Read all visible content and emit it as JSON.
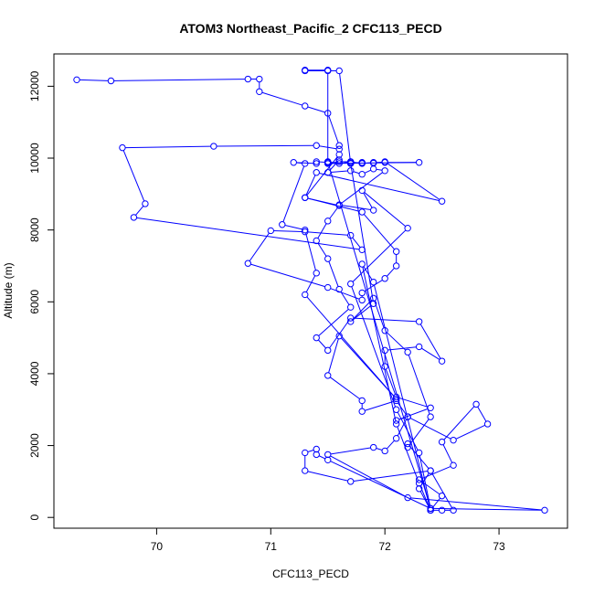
{
  "chart_data": {
    "type": "line",
    "title": "ATOM3 Northeast_Pacific_2 CFC113_PECD",
    "xlabel": "CFC113_PECD",
    "ylabel": "Altitude (m)",
    "xlim": [
      69.1,
      73.6
    ],
    "ylim": [
      -300,
      12900
    ],
    "x_ticks": [
      70,
      71,
      72,
      73
    ],
    "y_ticks": [
      0,
      2000,
      4000,
      6000,
      8000,
      10000,
      12000
    ],
    "grid": false,
    "series_color": "#0000ff",
    "series": [
      {
        "points": [
          [
            69.3,
            12180
          ],
          [
            69.6,
            12150
          ],
          [
            70.8,
            12200
          ],
          [
            70.9,
            12200
          ],
          [
            70.9,
            11850
          ],
          [
            71.3,
            11450
          ],
          [
            71.5,
            11250
          ],
          [
            71.6,
            10350
          ],
          [
            71.6,
            10250
          ],
          [
            71.4,
            10350
          ],
          [
            70.5,
            10330
          ],
          [
            69.7,
            10290
          ],
          [
            69.9,
            8730
          ],
          [
            69.8,
            8350
          ],
          [
            71.8,
            7450
          ],
          [
            71.7,
            7850
          ],
          [
            71.3,
            7950
          ],
          [
            71.0,
            7980
          ],
          [
            70.8,
            7070
          ],
          [
            71.5,
            6400
          ],
          [
            71.8,
            6050
          ],
          [
            71.8,
            6250
          ],
          [
            72.0,
            6650
          ],
          [
            72.1,
            7000
          ],
          [
            72.1,
            7400
          ],
          [
            71.8,
            8500
          ],
          [
            71.3,
            8900
          ],
          [
            71.6,
            8680
          ],
          [
            71.5,
            8250
          ],
          [
            71.4,
            7700
          ],
          [
            71.5,
            7200
          ],
          [
            71.6,
            6350
          ],
          [
            71.7,
            5850
          ],
          [
            71.4,
            5000
          ],
          [
            71.5,
            4650
          ],
          [
            71.7,
            5550
          ],
          [
            72.3,
            5450
          ],
          [
            72.5,
            4350
          ],
          [
            72.3,
            4750
          ],
          [
            72.0,
            4650
          ],
          [
            72.0,
            4200
          ],
          [
            72.1,
            3350
          ],
          [
            72.4,
            3050
          ],
          [
            72.1,
            2700
          ],
          [
            72.2,
            2800
          ],
          [
            72.6,
            2150
          ],
          [
            72.9,
            2600
          ],
          [
            72.8,
            3150
          ],
          [
            72.5,
            2100
          ],
          [
            72.6,
            1450
          ],
          [
            72.3,
            1050
          ],
          [
            72.5,
            600
          ],
          [
            72.4,
            200
          ],
          [
            72.5,
            200
          ],
          [
            72.6,
            200
          ],
          [
            72.4,
            1300
          ],
          [
            71.7,
            1000
          ],
          [
            71.3,
            1300
          ],
          [
            71.3,
            1800
          ],
          [
            71.4,
            1900
          ],
          [
            71.4,
            1750
          ],
          [
            71.5,
            1600
          ],
          [
            72.4,
            250
          ],
          [
            73.4,
            200
          ],
          [
            72.2,
            550
          ],
          [
            71.5,
            1750
          ],
          [
            71.9,
            1950
          ],
          [
            72.0,
            1850
          ],
          [
            72.1,
            2200
          ],
          [
            72.2,
            2800
          ],
          [
            72.1,
            3250
          ],
          [
            71.8,
            2950
          ],
          [
            71.8,
            3250
          ],
          [
            71.5,
            3950
          ],
          [
            71.6,
            5050
          ],
          [
            72.1,
            3300
          ],
          [
            71.3,
            6200
          ],
          [
            71.4,
            6800
          ],
          [
            71.3,
            8000
          ],
          [
            71.1,
            8150
          ],
          [
            71.3,
            9850
          ],
          [
            71.2,
            9880
          ],
          [
            71.4,
            9850
          ],
          [
            71.4,
            9900
          ],
          [
            71.5,
            9880
          ],
          [
            71.5,
            9850
          ],
          [
            71.6,
            9900
          ],
          [
            71.7,
            9900
          ],
          [
            71.7,
            9860
          ],
          [
            71.8,
            9880
          ],
          [
            71.8,
            9850
          ],
          [
            71.9,
            9880
          ],
          [
            72.0,
            9880
          ],
          [
            72.3,
            9880
          ],
          [
            71.5,
            9850
          ],
          [
            71.5,
            9900
          ],
          [
            71.6,
            9850
          ],
          [
            71.7,
            9890
          ],
          [
            71.8,
            9860
          ],
          [
            71.9,
            9860
          ],
          [
            72.0,
            9900
          ],
          [
            72.5,
            8800
          ],
          [
            71.4,
            9600
          ],
          [
            71.3,
            8900
          ],
          [
            71.6,
            10100
          ],
          [
            71.6,
            9950
          ],
          [
            71.5,
            9600
          ],
          [
            71.7,
            9650
          ],
          [
            71.8,
            9550
          ],
          [
            71.9,
            9700
          ],
          [
            72.0,
            9650
          ],
          [
            71.6,
            8700
          ],
          [
            71.9,
            8550
          ],
          [
            71.8,
            9100
          ],
          [
            72.2,
            8050
          ],
          [
            71.7,
            6500
          ],
          [
            72.1,
            3000
          ],
          [
            72.3,
            1800
          ],
          [
            72.4,
            250
          ],
          [
            71.5,
            9900
          ],
          [
            71.5,
            12450
          ],
          [
            71.3,
            12450
          ],
          [
            71.3,
            12430
          ],
          [
            71.5,
            12430
          ],
          [
            71.6,
            12430
          ],
          [
            71.7,
            9850
          ],
          [
            71.7,
            9900
          ],
          [
            71.7,
            9850
          ],
          [
            71.9,
            5950
          ],
          [
            71.7,
            5450
          ],
          [
            71.9,
            6100
          ],
          [
            72.0,
            5200
          ],
          [
            72.2,
            4600
          ],
          [
            72.4,
            2800
          ],
          [
            72.2,
            1950
          ],
          [
            72.2,
            2050
          ],
          [
            72.4,
            1300
          ],
          [
            72.3,
            800
          ],
          [
            72.4,
            200
          ],
          [
            71.9,
            6550
          ],
          [
            71.8,
            7050
          ],
          [
            72.1,
            2600
          ],
          [
            72.3,
            950
          ],
          [
            72.4,
            200
          ]
        ]
      }
    ]
  }
}
